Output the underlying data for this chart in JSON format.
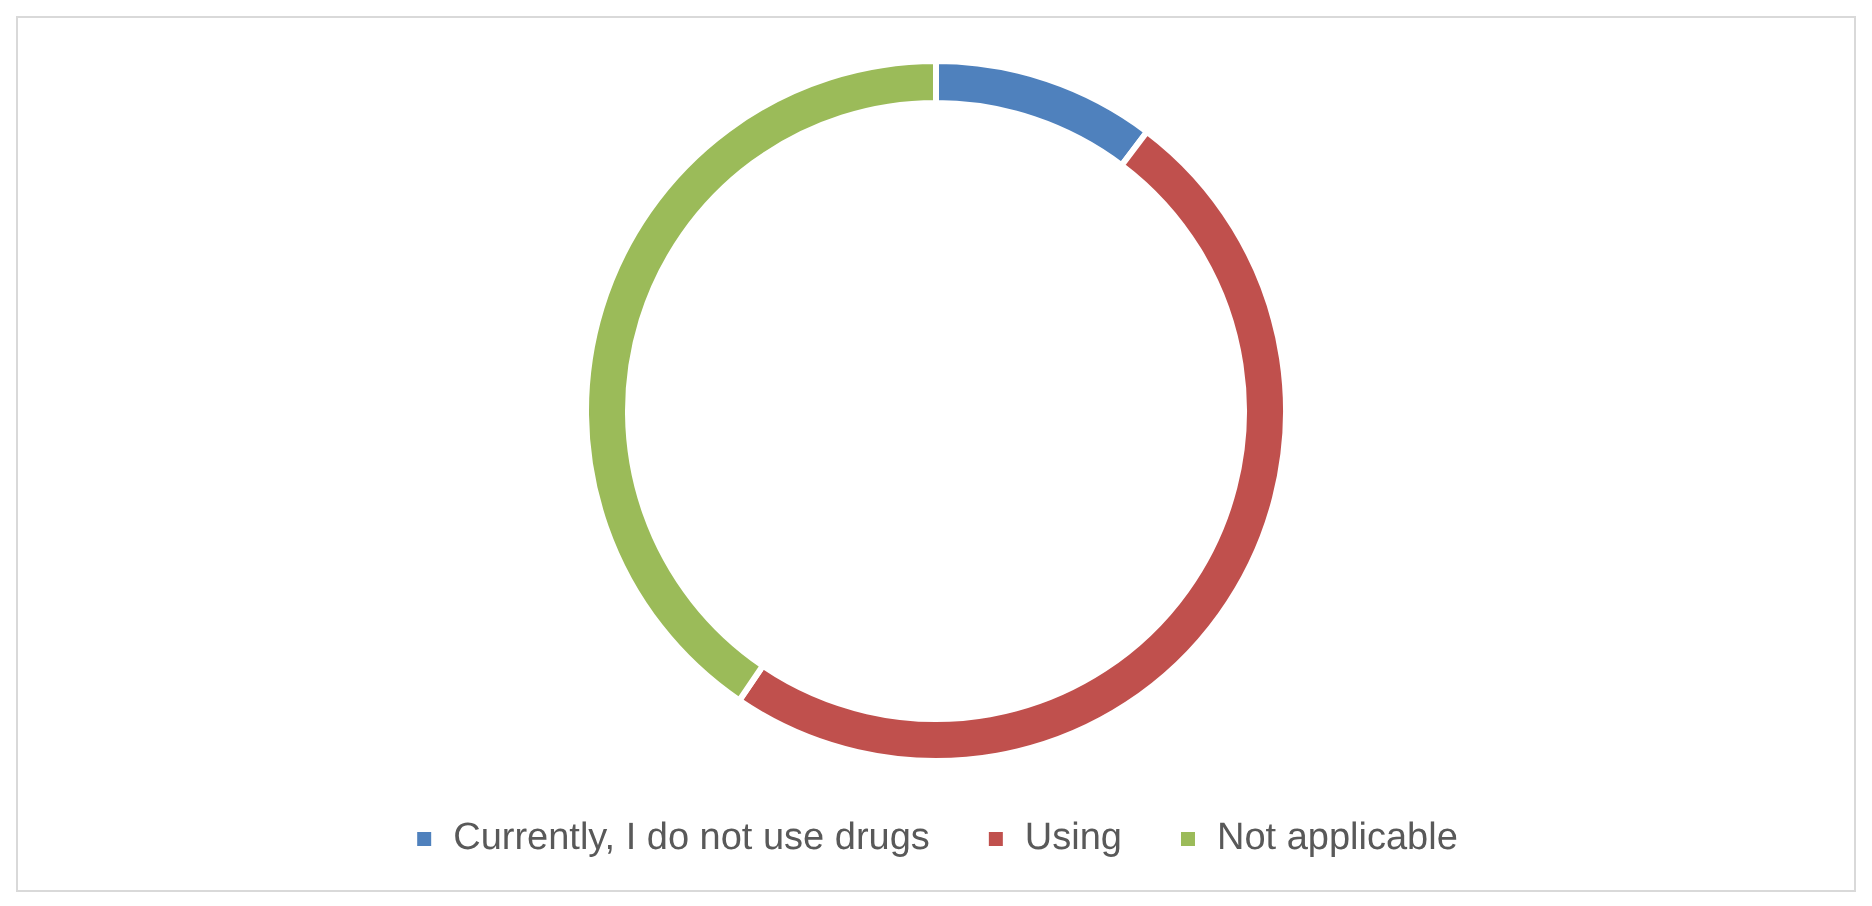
{
  "chart_data": {
    "type": "donut",
    "categories": [
      "Currently, I do not use drugs",
      "Using",
      "Not applicable"
    ],
    "values": [
      10.3,
      49.2,
      40.5
    ],
    "colors": [
      "#4f81bd",
      "#c0504d",
      "#9bbb59"
    ],
    "legend": "bottom"
  }
}
